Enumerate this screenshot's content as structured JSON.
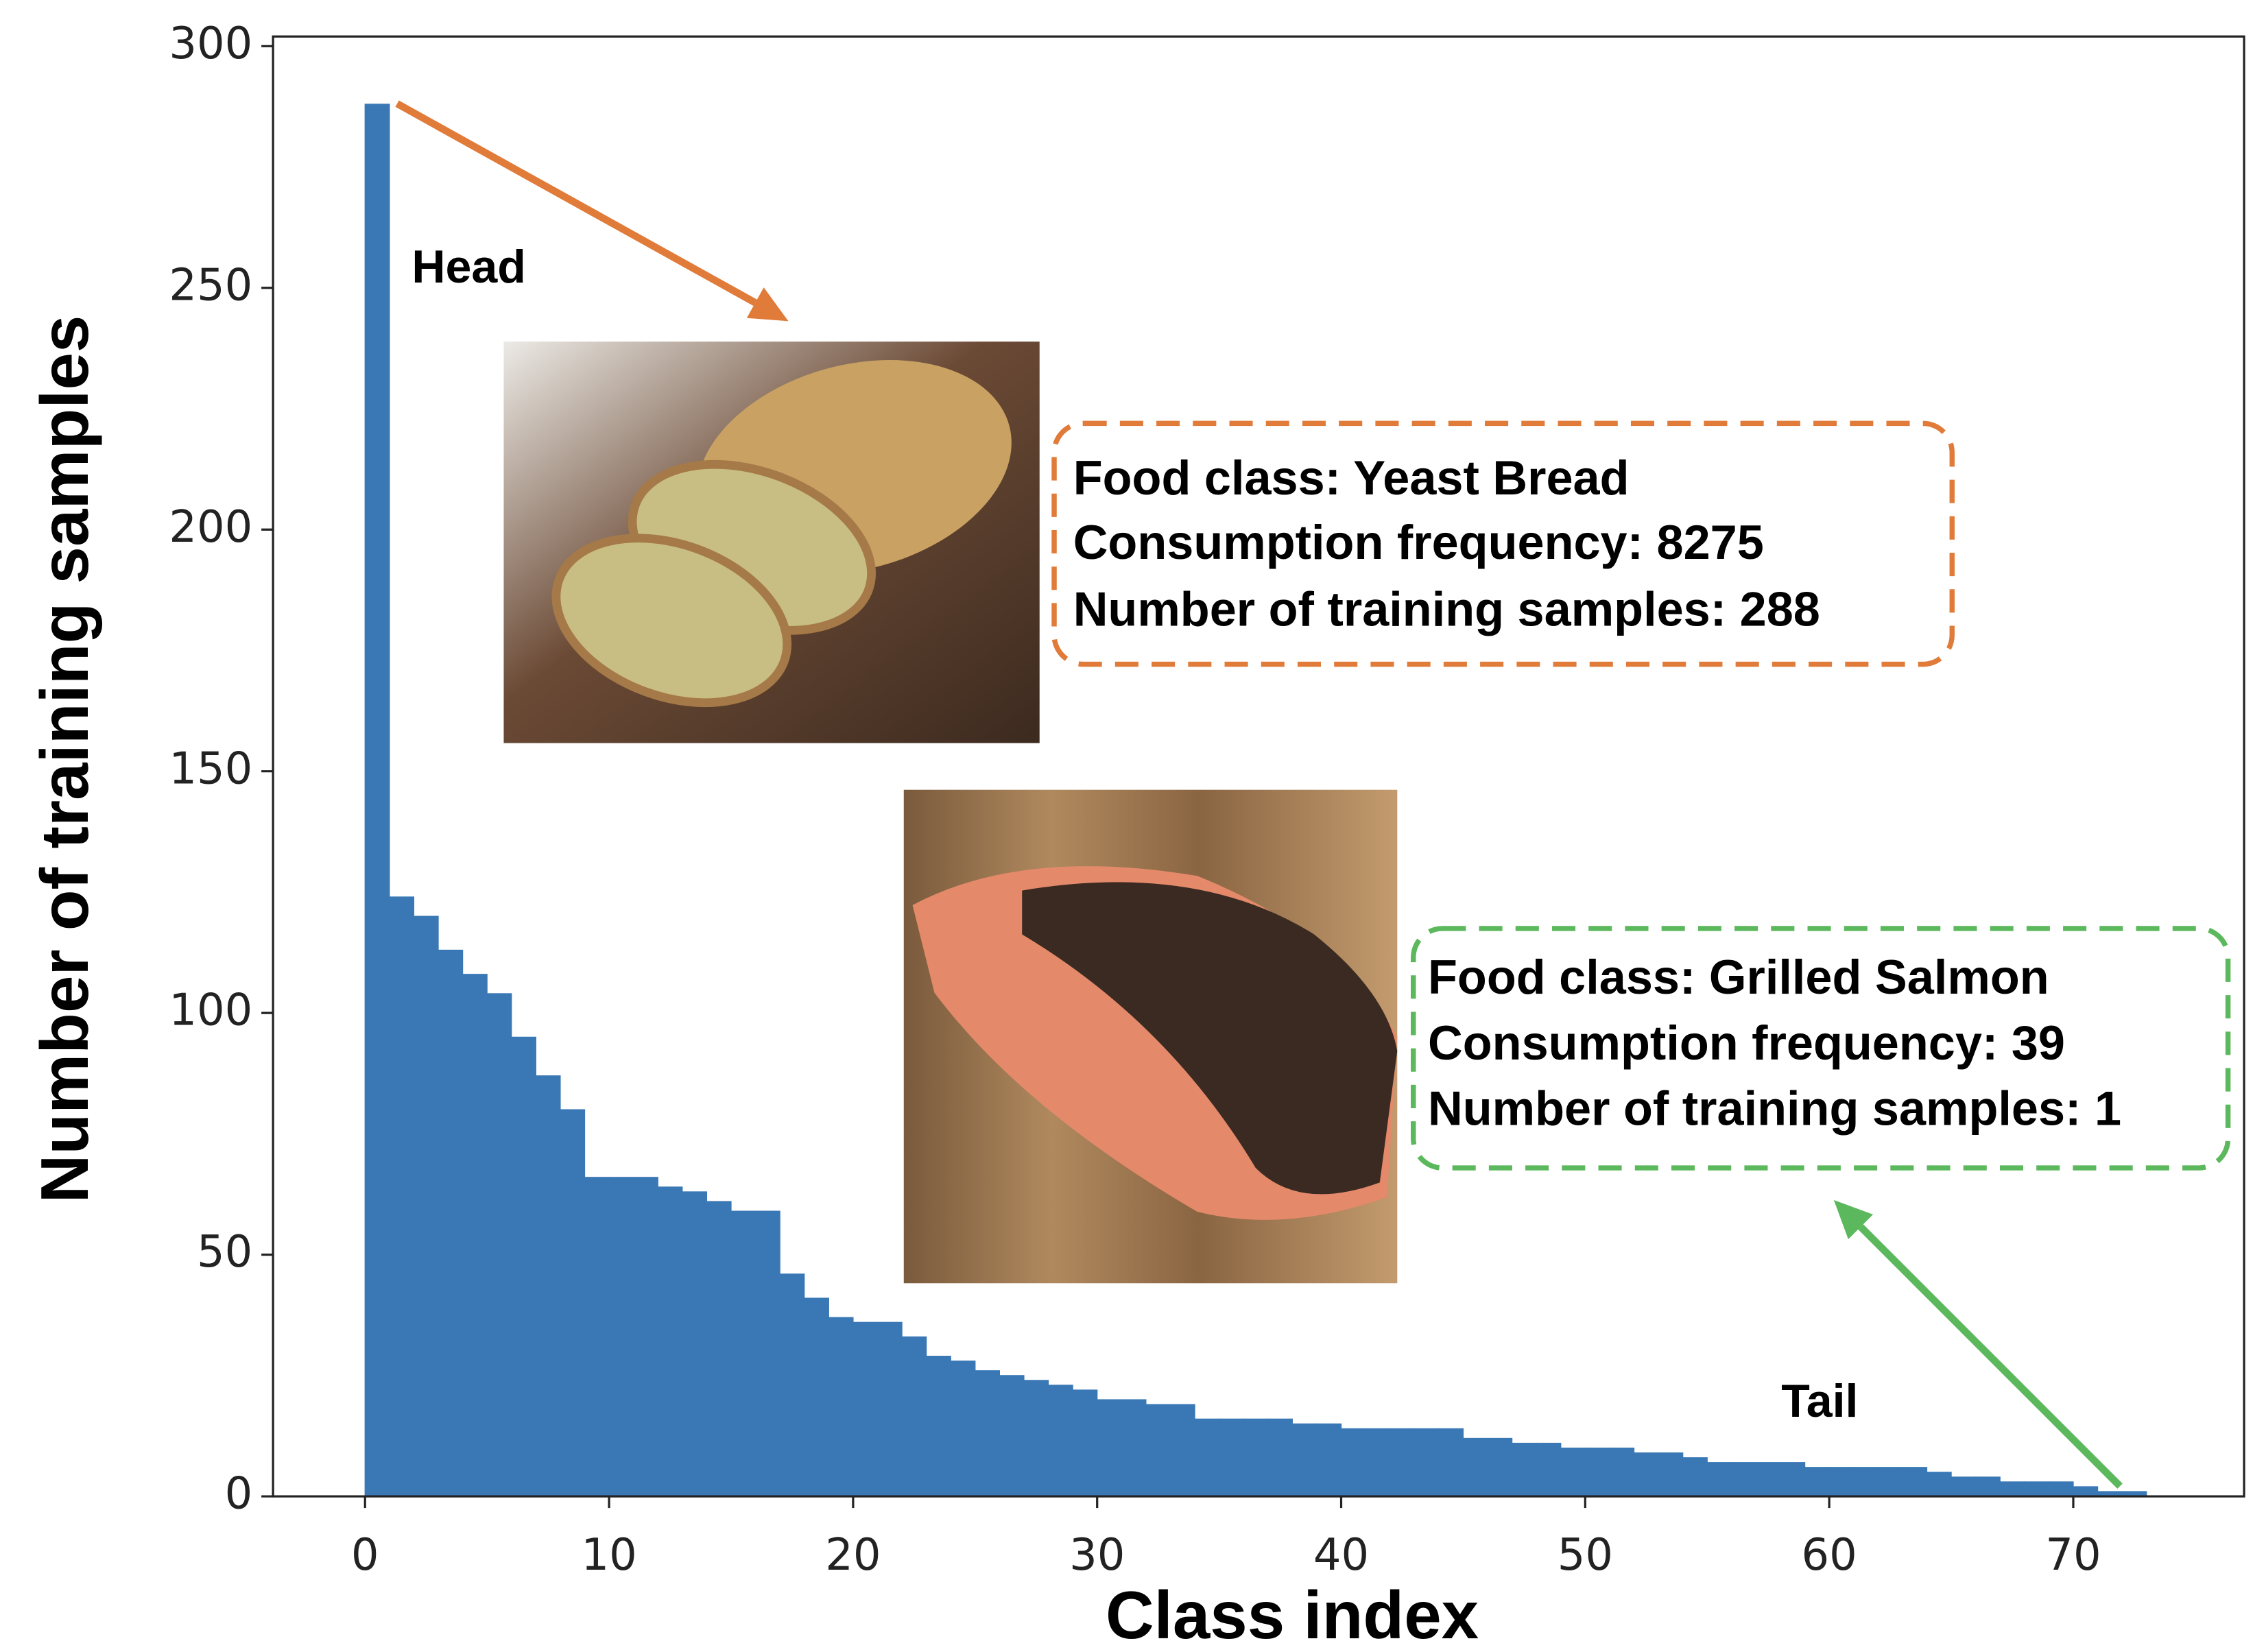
{
  "chart_data": {
    "type": "histogram",
    "xlabel": "Class index",
    "ylabel": "Number of training samples",
    "bins": [
      0,
      1,
      2,
      3,
      4,
      5,
      6,
      7,
      8,
      9,
      10,
      11,
      12,
      13,
      14,
      15,
      16,
      17,
      18,
      19,
      20,
      21,
      22,
      23,
      24,
      25,
      26,
      27,
      28,
      29,
      30,
      31,
      32,
      33,
      34,
      35,
      36,
      37,
      38,
      39,
      40,
      41,
      42,
      43,
      44,
      45,
      46,
      47,
      48,
      49,
      50,
      51,
      52,
      53,
      54,
      55,
      56,
      57,
      58,
      59,
      60,
      61,
      62,
      63,
      64,
      65,
      66,
      67,
      68,
      69,
      70,
      71,
      72,
      73
    ],
    "values": [
      288,
      124,
      120,
      113,
      108,
      104,
      95,
      87,
      80,
      66,
      66,
      66,
      64,
      63,
      61,
      59,
      59,
      46,
      41,
      37,
      36,
      36,
      33,
      29,
      28,
      26,
      25,
      24,
      23,
      22,
      20,
      20,
      19,
      19,
      16,
      16,
      16,
      16,
      15,
      15,
      14,
      14,
      14,
      14,
      14,
      12,
      12,
      11,
      11,
      10,
      10,
      10,
      9,
      9,
      8,
      7,
      7,
      7,
      7,
      6,
      6,
      6,
      6,
      6,
      5,
      4,
      4,
      3,
      3,
      3,
      2,
      1,
      1
    ],
    "color": "#3a78b5",
    "xlim": [
      -3.77,
      77
    ],
    "ylim": [
      0,
      302
    ],
    "xticks": [
      0,
      10,
      20,
      30,
      40,
      50,
      60,
      70
    ],
    "yticks": [
      0,
      50,
      100,
      150,
      200,
      250,
      300
    ],
    "annotations": [
      "Head",
      "Tail"
    ],
    "callouts": [
      {
        "color": "#e07b39",
        "lines": [
          "Food class: Yeast Bread",
          "Consumption frequency: 8275",
          "Number of training samples: 288"
        ]
      },
      {
        "color": "#5cb85c",
        "lines": [
          "Food class: Grilled Salmon",
          "Consumption frequency: 39",
          "Number of training samples: 1"
        ]
      }
    ]
  }
}
